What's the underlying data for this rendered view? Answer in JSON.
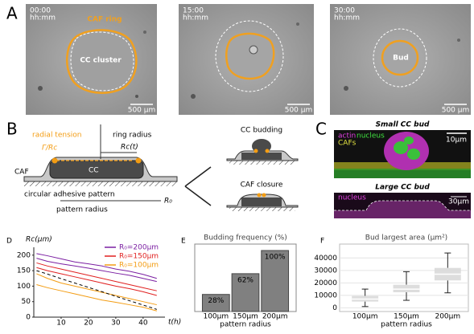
{
  "panels": {
    "a": {
      "letter": "A",
      "frames": [
        {
          "time": "00:00",
          "unit": "hh:mm",
          "scale": "500 μm",
          "labels": [
            "CAF ring",
            "CC cluster"
          ]
        },
        {
          "time": "15:00",
          "unit": "hh:mm",
          "scale": "500 μm",
          "labels": []
        },
        {
          "time": "30:00",
          "unit": "hh:mm",
          "scale": "500 μm",
          "labels": [
            "Bud"
          ]
        }
      ]
    },
    "b": {
      "letter": "B",
      "tension": "radial tension",
      "tension_formula": "Γ/Rc",
      "ring": "ring radius",
      "ring_symbol": "Rc(t)",
      "caf": "CAF",
      "cc": "CC",
      "pattern": "circular adhesive pattern",
      "pattern_radius": "pattern radius",
      "pattern_symbol": "R₀",
      "budding": "CC budding",
      "closure": "CAF closure"
    },
    "c": {
      "letter": "C",
      "small_title": "Small CC bud",
      "small_labels": [
        "actin",
        "nucleus",
        "CAFs"
      ],
      "small_scale": "10μm",
      "large_title": "Large CC bud",
      "large_label": "nucleus",
      "large_scale": "30μm"
    }
  },
  "chart_data": [
    {
      "type": "line",
      "letter": "D",
      "y_label": "Rc(μm)",
      "x_label": "t(h)",
      "x": [
        1,
        5,
        10,
        15,
        20,
        25,
        30,
        35,
        40,
        45
      ],
      "series": [
        {
          "name": "R₀=200μm",
          "color": "#7b1fa2",
          "values": [
            205,
            198,
            188,
            178,
            172,
            165,
            155,
            148,
            138,
            125
          ]
        },
        {
          "color": "#7b1fa2",
          "values": [
            190,
            180,
            172,
            165,
            158,
            150,
            142,
            135,
            125,
            115
          ]
        },
        {
          "name": "R₀=150μm",
          "color": "#e02020",
          "values": [
            175,
            165,
            155,
            145,
            135,
            125,
            115,
            105,
            95,
            85
          ]
        },
        {
          "color": "#e02020",
          "values": [
            160,
            150,
            140,
            130,
            120,
            110,
            100,
            92,
            82,
            70
          ]
        },
        {
          "name": "R₀=100μm",
          "color": "#f39c12",
          "values": [
            140,
            125,
            110,
            100,
            90,
            80,
            70,
            60,
            50,
            40
          ]
        },
        {
          "color": "#f39c12",
          "values": [
            105,
            95,
            85,
            75,
            65,
            55,
            48,
            40,
            32,
            20
          ]
        },
        {
          "color": "#000000",
          "dashed": true,
          "values": [
            150,
            139,
            124,
            110,
            96,
            82,
            67,
            53,
            39,
            25
          ]
        }
      ],
      "xlim": [
        0,
        48
      ],
      "ylim": [
        0,
        215
      ],
      "xticks": [
        10,
        20,
        30,
        40
      ],
      "yticks": [
        0,
        50,
        100,
        150,
        200
      ]
    },
    {
      "type": "bar",
      "letter": "E",
      "title": "Budding frequency (%)",
      "x_label": "pattern radius",
      "categories": [
        "100μm",
        "150μm",
        "200μm"
      ],
      "values": [
        28,
        62,
        100
      ],
      "value_labels": [
        "28%",
        "62%",
        "100%"
      ],
      "color": "#808080",
      "ylim": [
        0,
        100
      ]
    },
    {
      "type": "box",
      "letter": "F",
      "title": "Bud largest area (μm²)",
      "x_label": "pattern radius",
      "categories": [
        "100μm",
        "150μm",
        "200μm"
      ],
      "boxes": [
        {
          "min": 1000,
          "q1": 5000,
          "median": 7000,
          "q3": 9500,
          "max": 15000
        },
        {
          "min": 6000,
          "q1": 12500,
          "median": 15000,
          "q3": 18500,
          "max": 29000
        },
        {
          "min": 12000,
          "q1": 22000,
          "median": 27000,
          "q3": 32000,
          "max": 44000
        }
      ],
      "color": "#d9d9d9",
      "ylim": [
        -3000,
        46000
      ],
      "yticks": [
        0,
        10000,
        20000,
        30000,
        40000
      ],
      "grid": true
    }
  ]
}
